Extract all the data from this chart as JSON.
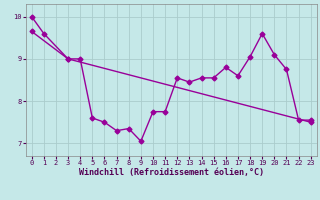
{
  "xlabel": "Windchill (Refroidissement éolien,°C)",
  "bg_color": "#c5e8e8",
  "grid_color": "#aacccc",
  "line_color": "#990099",
  "xlim": [
    -0.5,
    23.5
  ],
  "ylim": [
    6.7,
    10.3
  ],
  "yticks": [
    7,
    8,
    9,
    10
  ],
  "xticks": [
    0,
    1,
    2,
    3,
    4,
    5,
    6,
    7,
    8,
    9,
    10,
    11,
    12,
    13,
    14,
    15,
    16,
    17,
    18,
    19,
    20,
    21,
    22,
    23
  ],
  "line1_x": [
    0,
    1,
    3,
    4,
    5,
    6,
    7,
    8,
    9,
    10,
    11,
    12,
    13,
    14,
    15,
    16,
    17,
    18,
    19,
    20,
    21,
    22,
    23
  ],
  "line1_y": [
    10.0,
    9.6,
    9.0,
    9.0,
    7.6,
    7.5,
    7.3,
    7.35,
    7.05,
    7.75,
    7.75,
    8.55,
    8.45,
    8.55,
    8.55,
    8.8,
    8.6,
    9.05,
    9.6,
    9.1,
    8.75,
    7.55,
    7.55
  ],
  "line2_x": [
    0,
    3,
    23
  ],
  "line2_y": [
    9.65,
    9.0,
    7.5
  ],
  "marker": "D",
  "marker_size": 2.5,
  "linewidth": 1.0,
  "tick_fontsize": 5,
  "xlabel_fontsize": 6,
  "fig_width": 3.2,
  "fig_height": 2.0,
  "dpi": 100
}
